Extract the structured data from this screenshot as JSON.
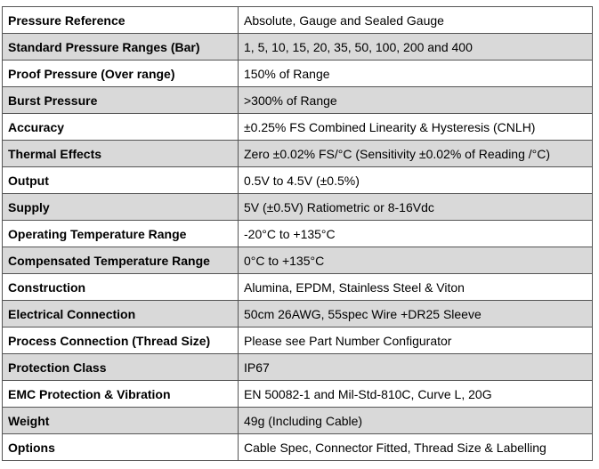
{
  "rows": [
    {
      "parameter": "Pressure Reference",
      "value": "Absolute, Gauge and Sealed Gauge"
    },
    {
      "parameter": "Standard Pressure Ranges (Bar)",
      "value": "1, 5, 10, 15, 20, 35, 50, 100, 200 and 400"
    },
    {
      "parameter": "Proof Pressure (Over range)",
      "value": "150% of Range"
    },
    {
      "parameter": "Burst Pressure",
      "value": ">300% of Range"
    },
    {
      "parameter": "Accuracy",
      "value": "±0.25% FS Combined Linearity & Hysteresis (CNLH)"
    },
    {
      "parameter": "Thermal Effects",
      "value": "Zero ±0.02% FS/°C (Sensitivity ±0.02% of Reading /°C)"
    },
    {
      "parameter": "Output",
      "value": "0.5V to 4.5V (±0.5%)"
    },
    {
      "parameter": "Supply",
      "value": "5V (±0.5V) Ratiometric or 8-16Vdc"
    },
    {
      "parameter": "Operating Temperature Range",
      "value": "-20°C to +135°C"
    },
    {
      "parameter": "Compensated Temperature Range",
      "value": "0°C to +135°C"
    },
    {
      "parameter": "Construction",
      "value": "Alumina, EPDM, Stainless Steel & Viton"
    },
    {
      "parameter": "Electrical Connection",
      "value": "50cm 26AWG, 55spec Wire +DR25 Sleeve"
    },
    {
      "parameter": "Process Connection (Thread Size)",
      "value": "Please see Part Number Configurator"
    },
    {
      "parameter": "Protection Class",
      "value": "IP67"
    },
    {
      "parameter": "EMC Protection & Vibration",
      "value": "EN 50082-1 and Mil-Std-810C, Curve L, 20G"
    },
    {
      "parameter": "Weight",
      "value": "49g (Including Cable)"
    },
    {
      "parameter": "Options",
      "value": "Cable Spec, Connector Fitted, Thread Size & Labelling"
    }
  ],
  "colors": {
    "shade": "#d9d9d9",
    "white": "#ffffff",
    "border": "#555555"
  }
}
